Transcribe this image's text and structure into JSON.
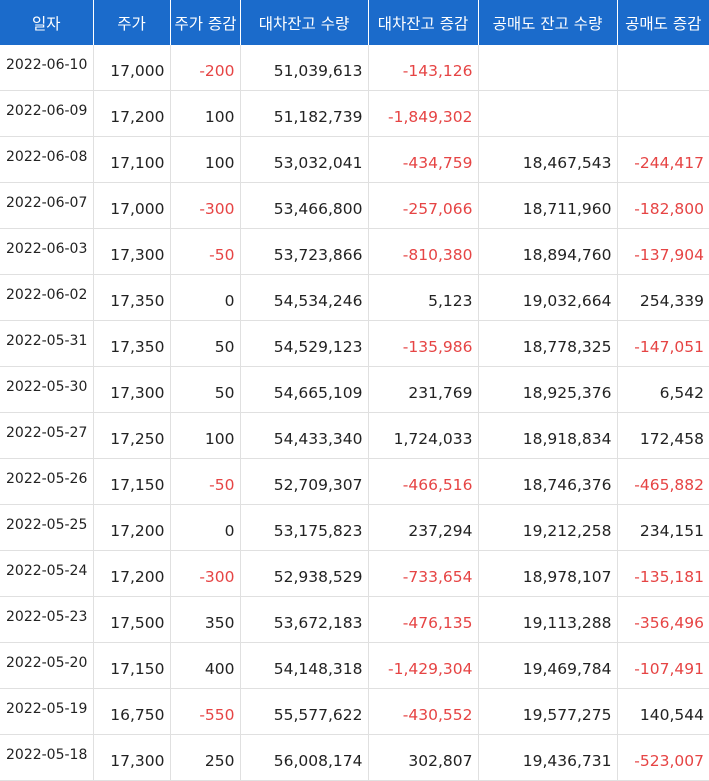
{
  "headers": [
    "일자",
    "주가",
    "주가 증감",
    "대차잔고 수량",
    "대차잔고 증감",
    "공매도 잔고 수량",
    "공매도 증감"
  ],
  "rows": [
    [
      "2022-06-10",
      "17,000",
      "-200",
      "51,039,613",
      "-143,126",
      "",
      ""
    ],
    [
      "2022-06-09",
      "17,200",
      "100",
      "51,182,739",
      "-1,849,302",
      "",
      ""
    ],
    [
      "2022-06-08",
      "17,100",
      "100",
      "53,032,041",
      "-434,759",
      "18,467,543",
      "-244,417"
    ],
    [
      "2022-06-07",
      "17,000",
      "-300",
      "53,466,800",
      "-257,066",
      "18,711,960",
      "-182,800"
    ],
    [
      "2022-06-03",
      "17,300",
      "-50",
      "53,723,866",
      "-810,380",
      "18,894,760",
      "-137,904"
    ],
    [
      "2022-06-02",
      "17,350",
      "0",
      "54,534,246",
      "5,123",
      "19,032,664",
      "254,339"
    ],
    [
      "2022-05-31",
      "17,350",
      "50",
      "54,529,123",
      "-135,986",
      "18,778,325",
      "-147,051"
    ],
    [
      "2022-05-30",
      "17,300",
      "50",
      "54,665,109",
      "231,769",
      "18,925,376",
      "6,542"
    ],
    [
      "2022-05-27",
      "17,250",
      "100",
      "54,433,340",
      "1,724,033",
      "18,918,834",
      "172,458"
    ],
    [
      "2022-05-26",
      "17,150",
      "-50",
      "52,709,307",
      "-466,516",
      "18,746,376",
      "-465,882"
    ],
    [
      "2022-05-25",
      "17,200",
      "0",
      "53,175,823",
      "237,294",
      "19,212,258",
      "234,151"
    ],
    [
      "2022-05-24",
      "17,200",
      "-300",
      "52,938,529",
      "-733,654",
      "18,978,107",
      "-135,181"
    ],
    [
      "2022-05-23",
      "17,500",
      "350",
      "53,672,183",
      "-476,135",
      "19,113,288",
      "-356,496"
    ],
    [
      "2022-05-20",
      "17,150",
      "400",
      "54,148,318",
      "-1,429,304",
      "19,469,784",
      "-107,491"
    ],
    [
      "2022-05-19",
      "16,750",
      "-550",
      "55,577,622",
      "-430,552",
      "19,577,275",
      "140,544"
    ],
    [
      "2022-05-18",
      "17,300",
      "250",
      "56,008,174",
      "302,807",
      "19,436,731",
      "-523,007"
    ]
  ],
  "colors": {
    "header_bg": "#1b6bcb",
    "header_text": "#ffffff",
    "negative": "#e64444",
    "text": "#222222",
    "grid": "#e0e0e0"
  }
}
